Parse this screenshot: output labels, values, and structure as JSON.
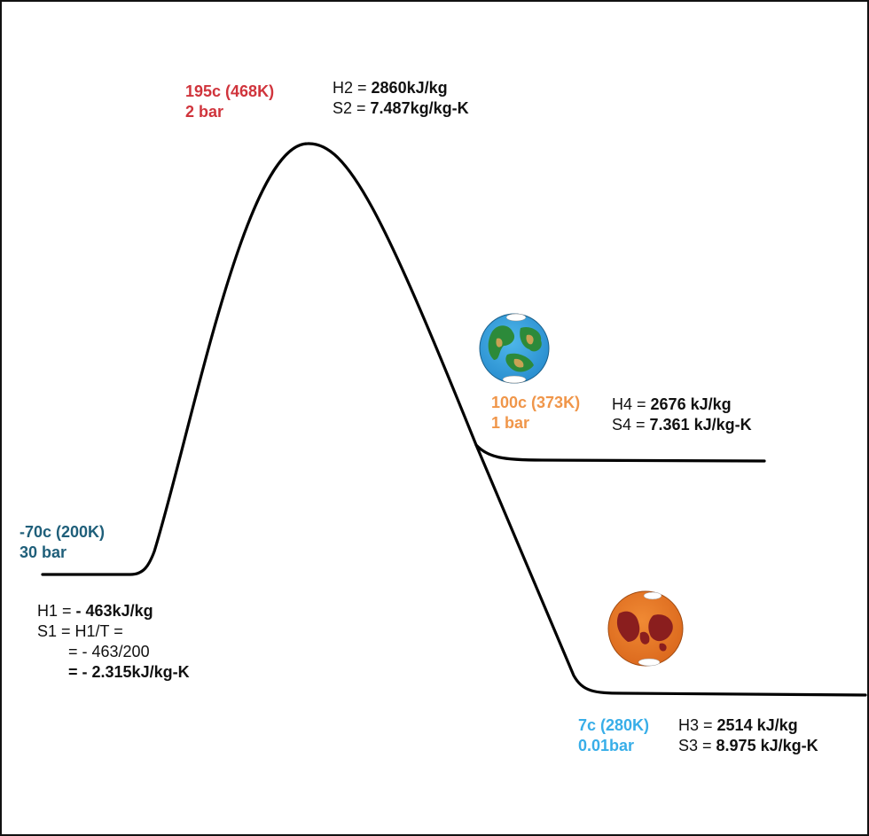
{
  "colors": {
    "state1": "#1f5f7a",
    "state2": "#d0343c",
    "state4": "#f0964a",
    "state3": "#38aee8",
    "curve": "#000000",
    "text": "#111111"
  },
  "state1": {
    "temp": "-70c  (200K)",
    "pressure": "30 bar",
    "h_label": "H1 = ",
    "h_value": "- 463kJ/kg",
    "s_label": "S1 = H1/T =",
    "s_step": "= - 463/200",
    "s_result": "= - 2.315kJ/kg-K"
  },
  "state2": {
    "temp": "195c (468K)",
    "pressure": "2 bar",
    "h_label": "H2 = ",
    "h_value": "2860kJ/kg",
    "s_label": "S2 = ",
    "s_value": "7.487kg/kg-K"
  },
  "state4": {
    "temp": "100c (373K)",
    "pressure": "1 bar",
    "h_label": "H4 = ",
    "h_value": "2676 kJ/kg",
    "s_label": "S4 = ",
    "s_value": "7.361 kJ/kg-K",
    "icon": "earth-planet-icon"
  },
  "state3": {
    "temp": "7c  (280K)",
    "pressure": "0.01bar",
    "h_label": "H3 = ",
    "h_value": "2514 kJ/kg",
    "s_label": "S3 = ",
    "s_value": "8.975 kJ/kg-K",
    "icon": "mars-planet-icon"
  }
}
